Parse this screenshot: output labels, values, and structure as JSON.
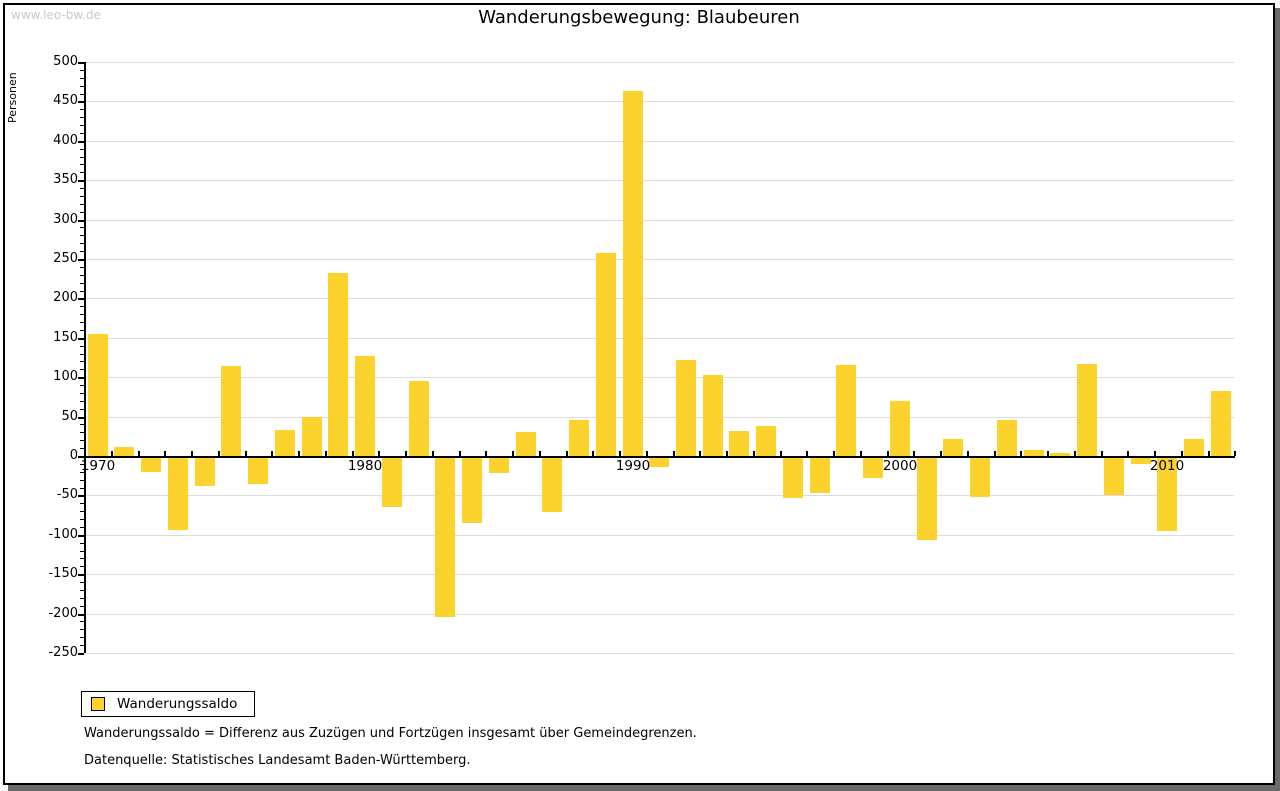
{
  "watermark": "www.leo-bw.de",
  "header": {
    "title": "Wanderungsbewegung: Blaubeuren"
  },
  "legend": {
    "label": "Wanderungssaldo",
    "swatch_color": "#fcd32d"
  },
  "footnotes": {
    "definition": "Wanderungssaldo = Differenz aus Zuzügen und Fortzügen insgesamt über Gemeindegrenzen.",
    "source": "Datenquelle: Statistisches Landesamt Baden-Württemberg."
  },
  "chart_data": {
    "type": "bar",
    "title": "Wanderungsbewegung: Blaubeuren",
    "xlabel": "",
    "ylabel": "Personen",
    "series_name": "Wanderungssaldo",
    "categories": [
      1970,
      1971,
      1972,
      1973,
      1974,
      1975,
      1976,
      1977,
      1978,
      1979,
      1980,
      1981,
      1982,
      1983,
      1984,
      1985,
      1986,
      1987,
      1988,
      1989,
      1990,
      1991,
      1992,
      1993,
      1994,
      1995,
      1996,
      1997,
      1998,
      1999,
      2000,
      2001,
      2002,
      2003,
      2004,
      2005,
      2006,
      2007,
      2008,
      2009,
      2010,
      2011,
      2012
    ],
    "values": [
      155,
      11,
      -18,
      -91,
      -35,
      114,
      -33,
      33,
      50,
      232,
      127,
      -62,
      95,
      -202,
      -82,
      -19,
      31,
      -69,
      46,
      257,
      463,
      -12,
      122,
      103,
      32,
      38,
      -51,
      -45,
      116,
      -26,
      70,
      -104,
      22,
      -50,
      46,
      8,
      4,
      117,
      -47,
      -7,
      -93,
      22,
      83
    ],
    "ylim": [
      -250,
      500
    ],
    "ytick_step": 50,
    "yminor_step": 10,
    "xtick_labels": [
      1970,
      1980,
      1990,
      2000,
      2010
    ],
    "bar_color": "#fcd32d",
    "grid_color": "#dcdcdc",
    "grid": true,
    "legend_position": "bottom-left"
  }
}
